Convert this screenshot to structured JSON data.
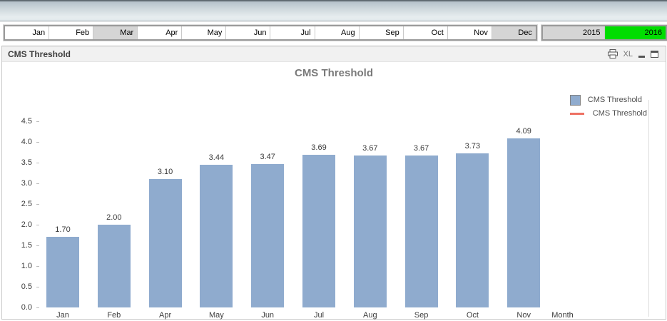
{
  "filters": {
    "months": {
      "items": [
        {
          "label": "Jan",
          "state": "possible"
        },
        {
          "label": "Feb",
          "state": "possible"
        },
        {
          "label": "Mar",
          "state": "excluded"
        },
        {
          "label": "Apr",
          "state": "possible"
        },
        {
          "label": "May",
          "state": "possible"
        },
        {
          "label": "Jun",
          "state": "possible"
        },
        {
          "label": "Jul",
          "state": "possible"
        },
        {
          "label": "Aug",
          "state": "possible"
        },
        {
          "label": "Sep",
          "state": "possible"
        },
        {
          "label": "Oct",
          "state": "possible"
        },
        {
          "label": "Nov",
          "state": "possible"
        },
        {
          "label": "Dec",
          "state": "excluded"
        }
      ]
    },
    "years": {
      "items": [
        {
          "label": "2015",
          "state": "excluded"
        },
        {
          "label": "2016",
          "state": "selected"
        }
      ]
    }
  },
  "panel": {
    "caption": "CMS Threshold",
    "icons": [
      {
        "name": "print-icon"
      },
      {
        "name": "excel-export-icon",
        "text": "XL"
      },
      {
        "name": "minimize-icon"
      },
      {
        "name": "maximize-icon"
      }
    ]
  },
  "chart_data": {
    "type": "bar",
    "title": "CMS Threshold",
    "categories": [
      "Jan",
      "Feb",
      "Apr",
      "May",
      "Jun",
      "Jul",
      "Aug",
      "Sep",
      "Oct",
      "Nov"
    ],
    "values": [
      1.7,
      2.0,
      3.1,
      3.44,
      3.47,
      3.69,
      3.67,
      3.67,
      3.73,
      4.09
    ],
    "value_labels": [
      "1.70",
      "2.00",
      "3.10",
      "3.44",
      "3.47",
      "3.69",
      "3.67",
      "3.67",
      "3.73",
      "4.09"
    ],
    "xlabel": "Month",
    "ylabel": "",
    "ylim": [
      0,
      4.5
    ],
    "ytick_step": 0.5,
    "grid": false,
    "legend_position": "right",
    "legend": [
      {
        "label": "CMS Threshold",
        "type": "bar",
        "color": "#8fabce"
      },
      {
        "label": "CMS Threshold",
        "type": "line",
        "color": "#ee7163"
      }
    ]
  },
  "colors": {
    "bar": "#8fabce",
    "excluded_bg": "#d5d5d5",
    "selected_bg": "#00dd00",
    "line_series": "#ee7163"
  }
}
